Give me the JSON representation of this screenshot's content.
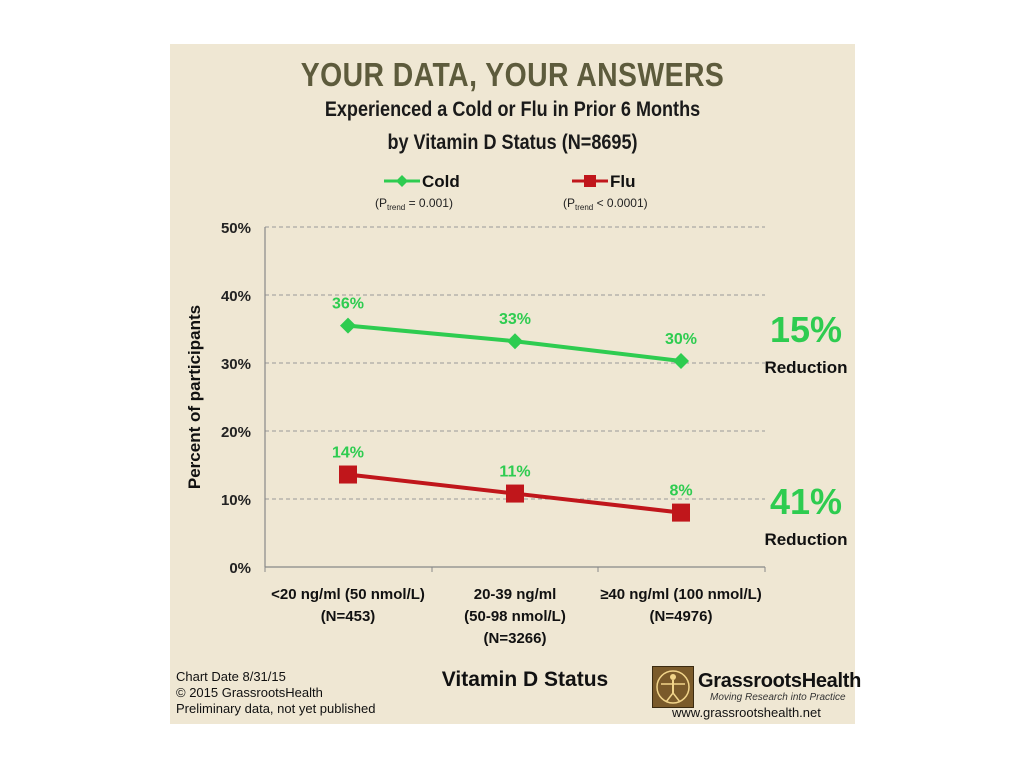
{
  "header": {
    "title": "YOUR DATA, YOUR ANSWERS",
    "subtitle_line1": "Experienced a Cold or Flu in Prior 6 Months",
    "subtitle_line2": "by Vitamin D Status (N=8695)"
  },
  "chart_data": {
    "type": "line",
    "categories": [
      [
        "<20 ng/ml (50 nmol/L)",
        "(N=453)"
      ],
      [
        "20-39 ng/ml",
        "(50-98 nmol/L)",
        "(N=3266)"
      ],
      [
        "≥40 ng/ml (100 nmol/L)",
        "(N=4976)"
      ]
    ],
    "series": [
      {
        "name": "Cold",
        "p_label": "P",
        "p_sub": "trend",
        "p_value": "= 0.001",
        "values": [
          35.5,
          33.2,
          30.3
        ],
        "data_labels": [
          "36%",
          "33%",
          "30%"
        ],
        "color": "#2ecc50",
        "marker": "diamond",
        "reduction_value": "15%",
        "reduction_label": "Reduction"
      },
      {
        "name": "Flu",
        "p_label": "P",
        "p_sub": "trend",
        "p_value": "< 0.0001",
        "values": [
          13.6,
          10.8,
          8.0
        ],
        "data_labels": [
          "14%",
          "11%",
          "8%"
        ],
        "color": "#c0161b",
        "marker": "square",
        "reduction_value": "41%",
        "reduction_label": "Reduction"
      }
    ],
    "ylim": [
      0,
      50
    ],
    "yticks": [
      0,
      10,
      20,
      30,
      40,
      50
    ],
    "ytick_labels": [
      "0%",
      "10%",
      "20%",
      "30%",
      "40%",
      "50%"
    ],
    "ylabel": "Percent of participants",
    "xlabel": "Vitamin D Status",
    "grid": true,
    "legend_position": "top",
    "label_color": "#2ecc50"
  },
  "footer": {
    "line1": "Chart Date 8/31/15",
    "line2": "© 2015 GrassrootsHealth",
    "line3": "Preliminary data, not yet published"
  },
  "logo": {
    "name": "GrassrootsHealth",
    "tagline": "Moving Research into Practice",
    "url": "www.grassrootshealth.net"
  }
}
